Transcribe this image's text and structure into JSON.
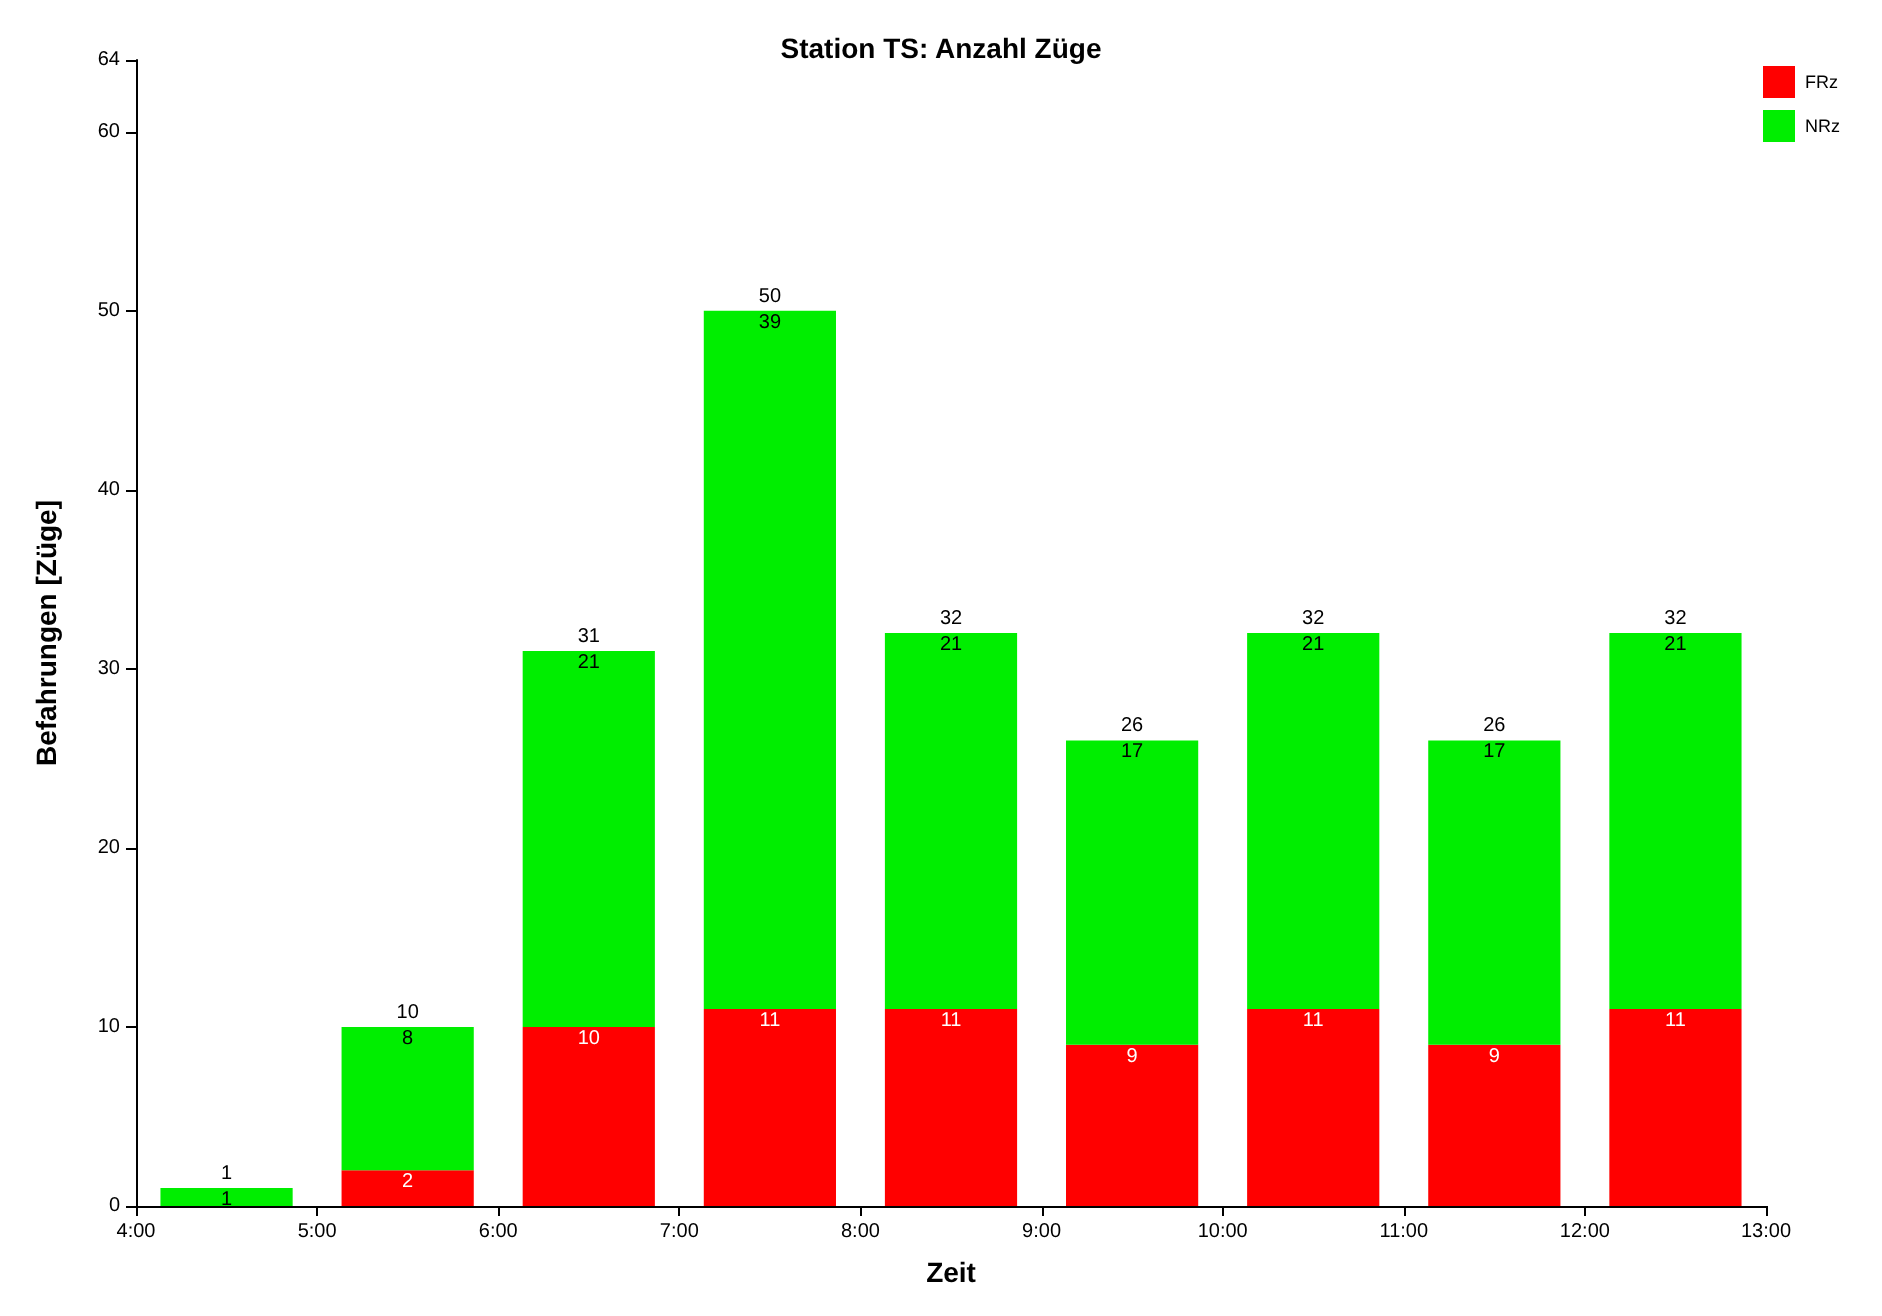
{
  "chart_data": {
    "type": "bar",
    "title": "Station TS: Anzahl Züge",
    "xlabel": "Zeit",
    "ylabel": "Befahrungen [Züge]",
    "stacked": true,
    "x": [
      4.5,
      5.5,
      6.5,
      7.5,
      8.5,
      9.5,
      10.5,
      11.5,
      12.5
    ],
    "series": [
      {
        "name": "FRz",
        "color": "#ff0000",
        "values": [
          0,
          2,
          10,
          11,
          11,
          9,
          11,
          9,
          11
        ],
        "value_labels": [
          null,
          "2",
          "10",
          "11",
          "11",
          "9",
          "11",
          "9",
          "11"
        ]
      },
      {
        "name": "NRz",
        "color": "#00ee00",
        "values": [
          1,
          8,
          21,
          39,
          21,
          17,
          21,
          17,
          21
        ],
        "value_labels": [
          "1",
          "8",
          "21",
          "39",
          "21",
          "17",
          "21",
          "17",
          "21"
        ]
      }
    ],
    "totals": [
      "1",
      "10",
      "31",
      "50",
      "32",
      "26",
      "32",
      "26",
      "32"
    ],
    "xlim": [
      4,
      13
    ],
    "xticks": [
      {
        "value": 4,
        "label": "4:00"
      },
      {
        "value": 5,
        "label": "5:00"
      },
      {
        "value": 6,
        "label": "6:00"
      },
      {
        "value": 7,
        "label": "7:00"
      },
      {
        "value": 8,
        "label": "8:00"
      },
      {
        "value": 9,
        "label": "9:00"
      },
      {
        "value": 10,
        "label": "10:00"
      },
      {
        "value": 11,
        "label": "11:00"
      },
      {
        "value": 12,
        "label": "12:00"
      },
      {
        "value": 13,
        "label": "13:00"
      }
    ],
    "ylim": [
      0,
      64
    ],
    "yticks": [
      0,
      10,
      20,
      30,
      40,
      50,
      60,
      64
    ],
    "grid": false,
    "legend": "top right"
  }
}
